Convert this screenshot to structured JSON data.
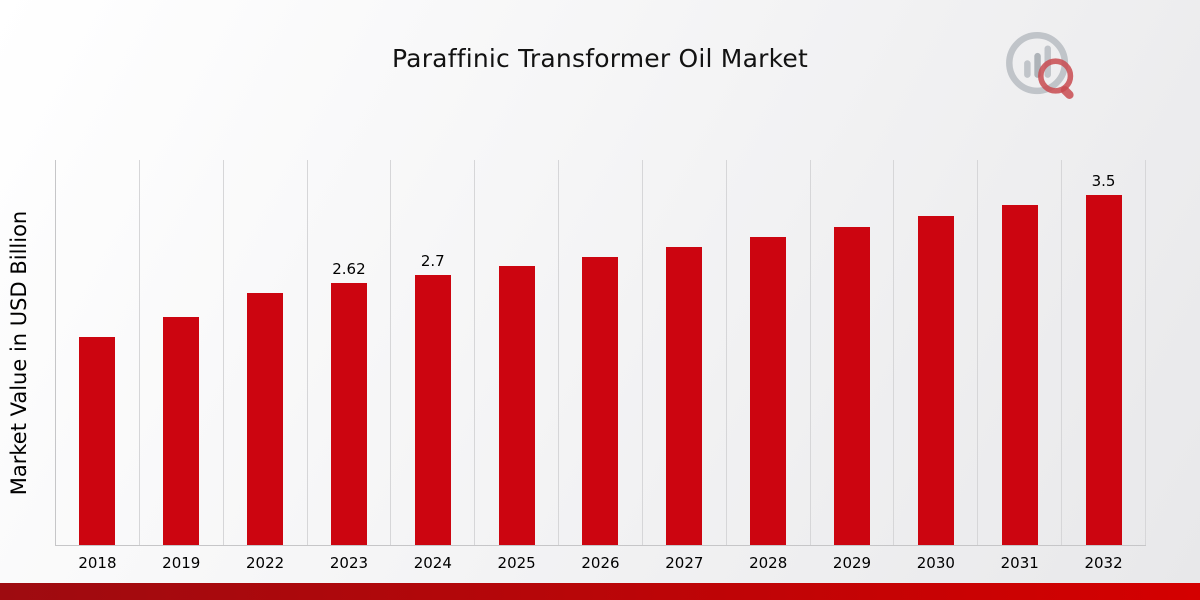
{
  "page": {
    "title": "Paraffinic Transformer Oil Market",
    "y_axis_label": "Market Value in USD Billion",
    "logo_icon": "bar-chart-magnifier-logo"
  },
  "colors": {
    "bar": "#cc0510",
    "footer_strip_start": "#9e0b10",
    "footer_strip_end": "#d40000",
    "gridline": "#d6d6d8"
  },
  "chart_data": {
    "type": "bar",
    "title": "Paraffinic Transformer Oil Market",
    "xlabel": "",
    "ylabel": "Market Value in USD Billion",
    "categories": [
      "2018",
      "2019",
      "2022",
      "2023",
      "2024",
      "2025",
      "2026",
      "2027",
      "2028",
      "2029",
      "2030",
      "2031",
      "2032"
    ],
    "values": [
      2.08,
      2.28,
      2.52,
      2.62,
      2.7,
      2.79,
      2.88,
      2.98,
      3.08,
      3.18,
      3.29,
      3.4,
      3.5
    ],
    "data_labels": [
      null,
      null,
      null,
      "2.62",
      "2.7",
      null,
      null,
      null,
      null,
      null,
      null,
      null,
      "3.5"
    ],
    "ylim": [
      0,
      3.85
    ],
    "grid": "vertical-only",
    "legend": "none",
    "bar_color": "#cc0510"
  }
}
